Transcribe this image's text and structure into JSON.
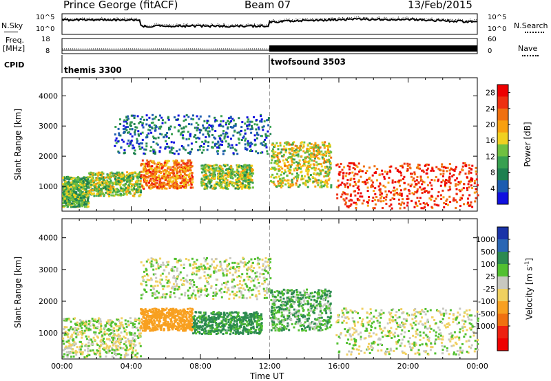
{
  "header": {
    "station": "Prince George (fitACF)",
    "beam": "Beam 07",
    "date": "13/Feb/2015"
  },
  "top_panel": {
    "left_label": "N.Sky",
    "right_label": "N.Search",
    "left_ticks": [
      "10^5",
      "10^0"
    ],
    "right_ticks": [
      "10^5",
      "10^0"
    ]
  },
  "freq_panel": {
    "left_label_1": "Freq.",
    "left_label_2": "[MHz]",
    "right_label": "Nave",
    "left_ticks": [
      "18",
      "8"
    ],
    "right_ticks": [
      "60",
      "0"
    ]
  },
  "cpid": {
    "label": "CPID",
    "modes": [
      {
        "name": "themis 3300",
        "start_hour": 0,
        "end_hour": 12
      },
      {
        "name": "twofsound 3503",
        "start_hour": 12,
        "end_hour": 24
      }
    ]
  },
  "chart_data": [
    {
      "type": "heatmap",
      "name": "Power",
      "ylabel": "Slant Range [km]",
      "xlabel": "",
      "xlim": [
        0,
        24
      ],
      "ylim": [
        180,
        4600
      ],
      "yticks": [
        "1000",
        "2000",
        "3000",
        "4000"
      ],
      "colorbar_label": "Power [dB]",
      "colorbar_ticks": [
        "4",
        "8",
        "12",
        "16",
        "20",
        "24",
        "28"
      ],
      "colorbar_range": [
        0,
        30
      ],
      "colors": [
        "#1010e0",
        "#1c5cb0",
        "#1e8050",
        "#38a050",
        "#70c040",
        "#f0d020",
        "#f8a010",
        "#f07010",
        "#ee3010",
        "#ee0000"
      ],
      "echo_regions": [
        {
          "t": [
            0.0,
            1.5
          ],
          "r": [
            350,
            1350
          ],
          "value": 12
        },
        {
          "t": [
            1.5,
            4.5
          ],
          "r": [
            700,
            1500
          ],
          "value": 14
        },
        {
          "t": [
            4.5,
            7.5
          ],
          "r": [
            950,
            1900
          ],
          "value": 22
        },
        {
          "t": [
            8.0,
            11.0
          ],
          "r": [
            950,
            1750
          ],
          "value": 14
        },
        {
          "t": [
            3.0,
            12.0
          ],
          "r": [
            2100,
            3400
          ],
          "value": 6
        },
        {
          "t": [
            12.0,
            15.5
          ],
          "r": [
            1000,
            2500
          ],
          "value": 16
        },
        {
          "t": [
            15.8,
            24.0
          ],
          "r": [
            300,
            1800
          ],
          "value": 26
        }
      ]
    },
    {
      "type": "heatmap",
      "name": "Velocity",
      "ylabel": "Slant Range [km]",
      "xlabel": "Time UT",
      "xlim": [
        0,
        24
      ],
      "ylim": [
        180,
        4600
      ],
      "xticks": [
        "00:00",
        "04:00",
        "08:00",
        "12:00",
        "16:00",
        "20:00",
        "00:00"
      ],
      "yticks": [
        "1000",
        "2000",
        "3000",
        "4000"
      ],
      "colorbar_label": "Velocity [m s^-1]",
      "colorbar_label_base": "Velocity [m s",
      "colorbar_label_sup": "-1",
      "colorbar_label_end": "]",
      "colorbar_ticks": [
        "1000",
        "500",
        "100",
        "25",
        "-25",
        "-100",
        "-500",
        "-1000"
      ],
      "colors": [
        "#1a33a8",
        "#2a66b4",
        "#2c8a50",
        "#52c030",
        "#c8c8c0",
        "#f0d060",
        "#f8a020",
        "#f07010",
        "#ee2010",
        "#ee0000"
      ],
      "echo_regions": [
        {
          "t": [
            0.0,
            4.5
          ],
          "r": [
            250,
            1500
          ],
          "value": 0
        },
        {
          "t": [
            4.5,
            7.5
          ],
          "r": [
            1100,
            1800
          ],
          "value": -300
        },
        {
          "t": [
            7.5,
            11.5
          ],
          "r": [
            1000,
            1700
          ],
          "value": 150
        },
        {
          "t": [
            4.5,
            12.0
          ],
          "r": [
            2100,
            3400
          ],
          "value": 0
        },
        {
          "t": [
            12.0,
            15.5
          ],
          "r": [
            1100,
            2400
          ],
          "value": 80
        },
        {
          "t": [
            15.8,
            24.0
          ],
          "r": [
            350,
            1800
          ],
          "value": 0
        }
      ]
    }
  ]
}
